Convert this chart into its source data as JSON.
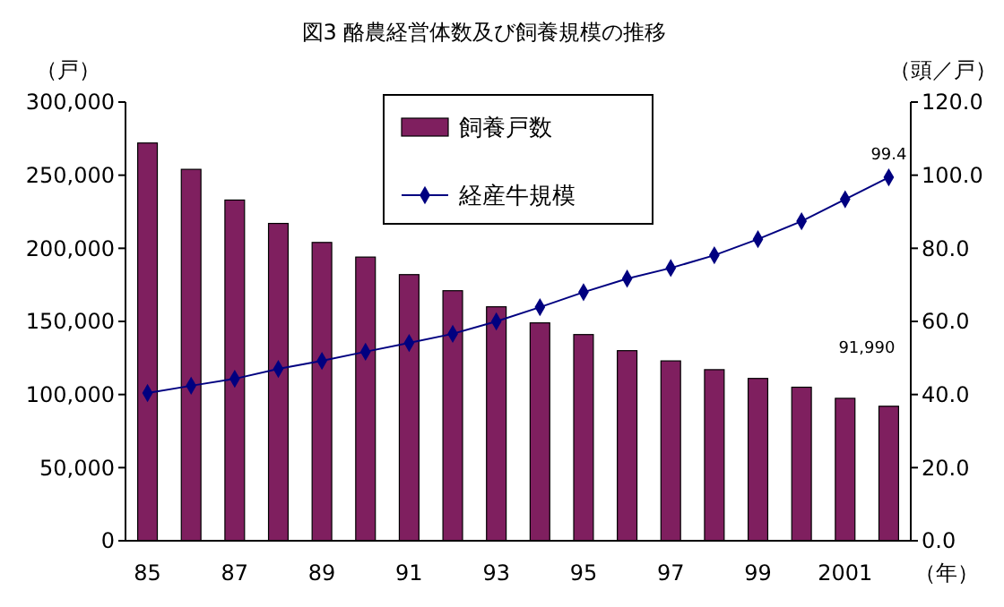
{
  "chart_data": {
    "type": "bar",
    "title": "図3  酪農経営体数及び飼養規模の推移",
    "ylabel": "（戸）",
    "y2label": "（頭／戸）",
    "xlabel": "（年）",
    "categories": [
      "85",
      null,
      "87",
      null,
      "89",
      null,
      "91",
      null,
      "93",
      null,
      "95",
      null,
      "97",
      null,
      "99",
      null,
      "2001",
      null
    ],
    "series": [
      {
        "name": "飼養戸数",
        "color": "#7f1f5f",
        "values": [
          272000,
          254000,
          233000,
          217000,
          204000,
          194000,
          182000,
          171000,
          160000,
          149000,
          141000,
          130000,
          123000,
          117000,
          111000,
          105000,
          97400,
          91990
        ],
        "value_labels": [
          null,
          null,
          null,
          null,
          null,
          null,
          null,
          null,
          null,
          null,
          null,
          null,
          null,
          null,
          null,
          null,
          null,
          "91,990"
        ]
      },
      {
        "name": "経産牛規模",
        "type": "line",
        "axis": "y2",
        "color": "#000080",
        "marker": "diamond",
        "values": [
          40.4,
          42.4,
          44.3,
          47.0,
          49.2,
          51.7,
          54.1,
          56.6,
          60.0,
          63.9,
          68.0,
          71.7,
          74.6,
          78.1,
          82.5,
          87.4,
          93.4,
          99.4
        ],
        "value_labels": [
          null,
          null,
          null,
          null,
          null,
          null,
          null,
          null,
          null,
          null,
          null,
          null,
          null,
          null,
          null,
          null,
          null,
          "99.4"
        ]
      }
    ],
    "ylim": [
      0,
      300000
    ],
    "yticks": [
      {
        "value": 0,
        "label": "0"
      },
      {
        "value": 50000,
        "label": "50,000"
      },
      {
        "value": 100000,
        "label": "100,000"
      },
      {
        "value": 150000,
        "label": "150,000"
      },
      {
        "value": 200000,
        "label": "200,000"
      },
      {
        "value": 250000,
        "label": "250,000"
      },
      {
        "value": 300000,
        "label": "300,000"
      }
    ],
    "y2lim": [
      0,
      120
    ],
    "y2ticks": [
      {
        "value": 0,
        "label": "0.0"
      },
      {
        "value": 20,
        "label": "20.0"
      },
      {
        "value": 40,
        "label": "40.0"
      },
      {
        "value": 60,
        "label": "60.0"
      },
      {
        "value": 80,
        "label": "80.0"
      },
      {
        "value": 100,
        "label": "100.0"
      },
      {
        "value": 120,
        "label": "120.0"
      }
    ],
    "legend": "top",
    "grid": false
  }
}
